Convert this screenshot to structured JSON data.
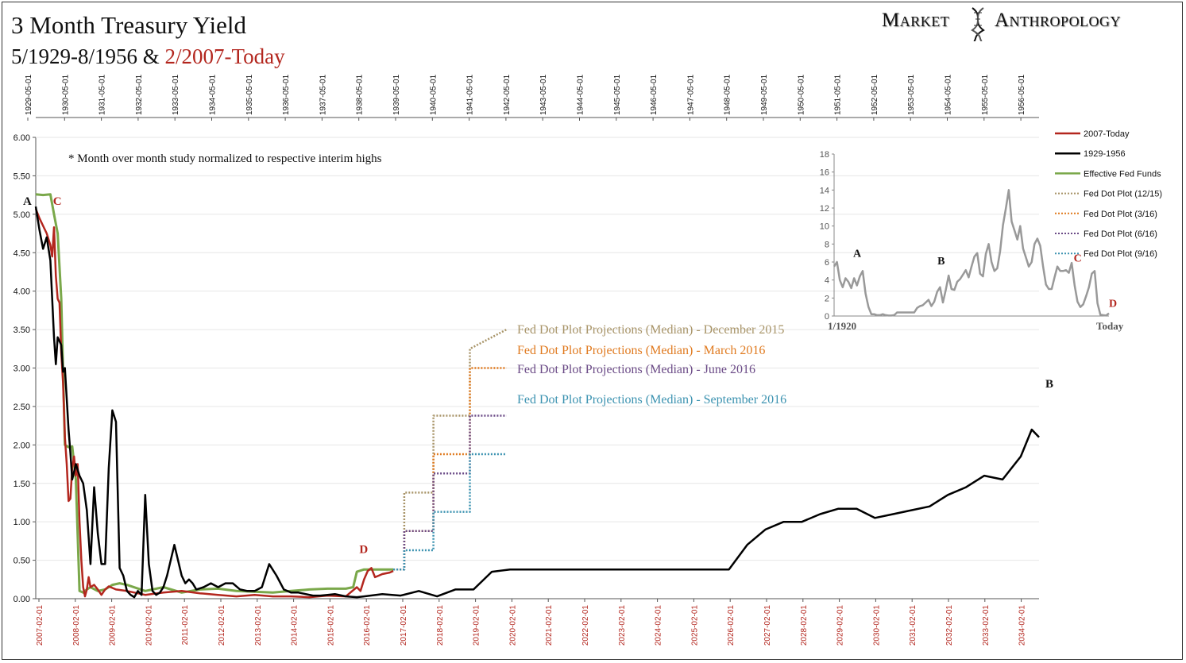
{
  "header": {
    "title": "3 Month Treasury Yield",
    "subtitle_black": "5/1929-8/1956 & ",
    "subtitle_red": "2/2007-Today",
    "brand_left": "Market",
    "brand_right": "Anthropology"
  },
  "colors": {
    "red_series": "#b3261e",
    "black_series": "#000000",
    "fed_funds": "#7aa84a",
    "dot_dec15": "#a89468",
    "dot_mar16": "#e07a1f",
    "dot_jun16": "#6b4b87",
    "dot_sep16": "#3b92b0",
    "inset": "#999999"
  },
  "chart_data": [
    {
      "type": "line",
      "title": "3 Month Treasury Yield",
      "note": "* Month over month study normalized to respective interim highs",
      "ylim": [
        0,
        6
      ],
      "y_ticks": [
        "0.00",
        "0.50",
        "1.00",
        "1.50",
        "2.00",
        "2.50",
        "3.00",
        "3.50",
        "4.00",
        "4.50",
        "5.00",
        "5.50",
        "6.00"
      ],
      "x_bottom_ticks": [
        "2007-02-01",
        "2008-02-01",
        "2009-02-01",
        "2010-02-01",
        "2011-02-01",
        "2012-02-01",
        "2013-02-01",
        "2014-02-01",
        "2015-02-01",
        "2016-02-01",
        "2017-02-01",
        "2018-02-01",
        "2019-02-01",
        "2020-02-01",
        "2021-02-01",
        "2022-02-01",
        "2023-02-01",
        "2024-02-01",
        "2025-02-01",
        "2026-02-01",
        "2027-02-01",
        "2028-02-01",
        "2029-02-01",
        "2030-02-01",
        "2031-02-01",
        "2032-02-01",
        "2033-02-01",
        "2034-02-01"
      ],
      "x_top_ticks": [
        "1929-05-01",
        "1930-05-01",
        "1931-05-01",
        "1932-05-01",
        "1933-05-01",
        "1934-05-01",
        "1935-05-01",
        "1936-05-01",
        "1937-05-01",
        "1938-05-01",
        "1939-05-01",
        "1940-05-01",
        "1941-05-01",
        "1942-05-01",
        "1943-05-01",
        "1944-05-01",
        "1945-05-01",
        "1946-05-01",
        "1947-05-01",
        "1948-05-01",
        "1949-05-01",
        "1950-05-01",
        "1951-05-01",
        "1952-05-01",
        "1953-05-01",
        "1954-05-01",
        "1955-05-01",
        "1956-05-01"
      ],
      "legend": [
        "2007-Today",
        "1929-1956",
        "Effective Fed Funds",
        "Fed Dot Plot (12/15)",
        "Fed Dot Plot (3/16)",
        "Fed Dot Plot (6/16)",
        "Fed Dot Plot (9/16)"
      ],
      "legend_placement": "right",
      "series": [
        {
          "name": "2007-Today",
          "x": [
            0,
            0.1,
            0.2,
            0.3,
            0.4,
            0.45,
            0.5,
            0.55,
            0.6,
            0.65,
            0.7,
            0.75,
            0.8,
            0.85,
            0.9,
            0.95,
            1.0,
            1.05,
            1.1,
            1.15,
            1.2,
            1.25,
            1.3,
            1.35,
            1.4,
            1.45,
            1.5,
            1.6,
            1.7,
            1.8,
            1.9,
            2.0,
            2.2,
            2.5,
            3.0,
            3.5,
            4.0,
            4.5,
            5.0,
            5.5,
            6.0,
            6.5,
            7.0,
            7.5,
            8.0,
            8.5,
            8.8,
            8.9,
            9.0,
            9.1,
            9.2,
            9.3,
            9.4,
            9.5,
            9.7,
            9.8
          ],
          "y": [
            5.07,
            4.95,
            4.85,
            4.75,
            4.6,
            4.45,
            4.83,
            4.2,
            3.9,
            3.85,
            3.2,
            2.8,
            2.1,
            1.75,
            1.27,
            1.3,
            1.7,
            1.85,
            1.6,
            1.75,
            1.0,
            0.5,
            0.15,
            0.03,
            0.12,
            0.28,
            0.15,
            0.18,
            0.12,
            0.05,
            0.12,
            0.16,
            0.12,
            0.1,
            0.05,
            0.08,
            0.1,
            0.07,
            0.05,
            0.03,
            0.05,
            0.03,
            0.03,
            0.02,
            0.04,
            0.03,
            0.15,
            0.1,
            0.25,
            0.36,
            0.4,
            0.28,
            0.3,
            0.32,
            0.34,
            0.36
          ]
        },
        {
          "name": "1929-1956",
          "x": [
            0,
            0.1,
            0.2,
            0.3,
            0.4,
            0.5,
            0.55,
            0.6,
            0.7,
            0.75,
            0.8,
            0.9,
            0.95,
            1.0,
            1.1,
            1.2,
            1.3,
            1.4,
            1.5,
            1.6,
            1.7,
            1.8,
            1.9,
            2.0,
            2.1,
            2.2,
            2.3,
            2.4,
            2.5,
            2.6,
            2.7,
            2.8,
            2.9,
            3.0,
            3.1,
            3.2,
            3.3,
            3.4,
            3.5,
            3.6,
            3.8,
            4.0,
            4.1,
            4.2,
            4.3,
            4.4,
            4.6,
            4.8,
            5.0,
            5.2,
            5.4,
            5.6,
            5.8,
            6.0,
            6.2,
            6.4,
            6.6,
            6.8,
            7.0,
            7.2,
            7.4,
            7.6,
            7.8,
            8.0,
            8.2,
            8.5,
            8.8,
            9.0,
            9.5,
            10.0,
            10.5,
            11.0,
            11.5,
            12.0,
            12.5,
            13.0,
            13.5,
            14.0,
            15.0,
            16.0,
            17.0,
            18.0,
            18.5,
            19.0,
            19.5,
            20.0,
            20.5,
            21.0,
            21.5,
            22.0,
            22.5,
            23.0,
            23.5,
            24.0,
            24.5,
            25.0,
            25.5,
            26.0,
            26.5,
            27.0,
            27.3,
            27.5
          ],
          "y": [
            5.1,
            4.8,
            4.55,
            4.7,
            4.4,
            3.4,
            3.05,
            3.4,
            3.3,
            2.95,
            3.0,
            2.2,
            1.9,
            1.55,
            1.75,
            1.6,
            1.5,
            1.15,
            0.45,
            1.45,
            0.85,
            0.45,
            0.45,
            1.7,
            2.45,
            2.3,
            0.4,
            0.3,
            0.1,
            0.05,
            0.02,
            0.1,
            0.05,
            1.35,
            0.45,
            0.1,
            0.05,
            0.08,
            0.15,
            0.3,
            0.7,
            0.3,
            0.2,
            0.25,
            0.2,
            0.12,
            0.15,
            0.2,
            0.15,
            0.2,
            0.2,
            0.12,
            0.1,
            0.1,
            0.15,
            0.45,
            0.3,
            0.12,
            0.08,
            0.08,
            0.06,
            0.04,
            0.04,
            0.05,
            0.06,
            0.03,
            0.02,
            0.03,
            0.06,
            0.04,
            0.1,
            0.03,
            0.12,
            0.12,
            0.35,
            0.38,
            0.38,
            0.38,
            0.38,
            0.38,
            0.38,
            0.38,
            0.38,
            0.38,
            0.7,
            0.9,
            1.0,
            1.0,
            1.1,
            1.17,
            1.17,
            1.05,
            1.1,
            1.15,
            1.2,
            1.35,
            1.45,
            1.6,
            1.55,
            1.85,
            2.2,
            2.1
          ]
        },
        {
          "name": "Effective Fed Funds",
          "x": [
            0,
            0.2,
            0.4,
            0.5,
            0.6,
            0.7,
            0.8,
            0.9,
            1.0,
            1.1,
            1.2,
            1.3,
            1.4,
            1.5,
            1.7,
            1.9,
            2.1,
            2.3,
            2.5,
            3.0,
            3.5,
            4.0,
            4.5,
            5.0,
            5.5,
            6.0,
            6.5,
            7.0,
            7.5,
            8.0,
            8.5,
            8.7,
            8.8,
            9.0,
            9.2,
            9.4,
            9.6,
            9.8
          ],
          "y": [
            5.26,
            5.25,
            5.26,
            5.0,
            4.75,
            3.9,
            2.0,
            1.97,
            1.98,
            1.55,
            0.1,
            0.08,
            0.12,
            0.15,
            0.1,
            0.12,
            0.18,
            0.2,
            0.18,
            0.1,
            0.15,
            0.08,
            0.12,
            0.13,
            0.1,
            0.09,
            0.08,
            0.1,
            0.12,
            0.13,
            0.13,
            0.15,
            0.35,
            0.38,
            0.38,
            0.38,
            0.38,
            0.38
          ]
        },
        {
          "name": "Fed Dot Plot (12/15)",
          "x": [
            9.8,
            10.1,
            10.1,
            10.9,
            10.9,
            11.9,
            11.9,
            12.9
          ],
          "y": [
            0.38,
            0.38,
            1.38,
            1.38,
            2.38,
            2.38,
            3.25,
            3.5
          ]
        },
        {
          "name": "Fed Dot Plot (3/16)",
          "x": [
            9.8,
            10.1,
            10.1,
            10.9,
            10.9,
            11.9,
            11.9,
            12.9
          ],
          "y": [
            0.38,
            0.38,
            0.88,
            0.88,
            1.88,
            1.88,
            3.0,
            3.0
          ]
        },
        {
          "name": "Fed Dot Plot (6/16)",
          "x": [
            9.8,
            10.1,
            10.1,
            10.9,
            10.9,
            11.9,
            11.9,
            12.9
          ],
          "y": [
            0.38,
            0.38,
            0.88,
            0.88,
            1.63,
            1.63,
            2.38,
            2.38
          ]
        },
        {
          "name": "Fed Dot Plot (9/16)",
          "x": [
            9.8,
            10.1,
            10.1,
            10.9,
            10.9,
            11.9,
            11.9,
            12.9
          ],
          "y": [
            0.38,
            0.38,
            0.63,
            0.63,
            1.13,
            1.13,
            1.88,
            1.88
          ]
        }
      ],
      "annotations": [
        {
          "text": "Fed Dot Plot Projections (Median) - December 2015",
          "series": "Fed Dot Plot (12/15)"
        },
        {
          "text": "Fed Dot Plot Projections (Median) - March 2016",
          "series": "Fed Dot Plot (3/16)"
        },
        {
          "text": "Fed Dot Plot Projections (Median) - June 2016",
          "series": "Fed Dot Plot (6/16)"
        },
        {
          "text": "Fed Dot Plot Projections (Median) - September 2016",
          "series": "Fed Dot Plot (9/16)"
        }
      ],
      "point_labels": [
        {
          "text": "A",
          "series": "1929-1956",
          "x": 0,
          "y": 5.1
        },
        {
          "text": "C",
          "series": "2007-Today",
          "x": 0.3,
          "y": 5.1
        },
        {
          "text": "D",
          "series": "2007-Today",
          "x": 9.0,
          "y": 0.45
        },
        {
          "text": "B",
          "series": "1929-1956",
          "x": 27.5,
          "y": 2.6
        }
      ]
    },
    {
      "type": "line",
      "title": "",
      "ylim": [
        0,
        18
      ],
      "y_ticks": [
        "0",
        "2",
        "4",
        "6",
        "8",
        "10",
        "12",
        "14",
        "16",
        "18"
      ],
      "x_labels": [
        "1/1920",
        "Today"
      ],
      "series": [
        {
          "name": "",
          "x": [
            0,
            1,
            2,
            3,
            4,
            5,
            6,
            7,
            8,
            9,
            10,
            11,
            12,
            13,
            14,
            15,
            16,
            17,
            18,
            19,
            20,
            21,
            22,
            23,
            24,
            25,
            26,
            27,
            28,
            29,
            30,
            31,
            32,
            33,
            34,
            35,
            36,
            37,
            38,
            39,
            40,
            41,
            42,
            43,
            44,
            45,
            46,
            47,
            48,
            49,
            50,
            51,
            52,
            53,
            54,
            55,
            56,
            57,
            58,
            59,
            60,
            61,
            62,
            63,
            64,
            65,
            66,
            67,
            68,
            69,
            70,
            71,
            72,
            73,
            74,
            75,
            76,
            77,
            78,
            79,
            80,
            81,
            82,
            83,
            84,
            85,
            86,
            87,
            88,
            89,
            90,
            91,
            92,
            93,
            94,
            95,
            96
          ],
          "y": [
            5.5,
            6.0,
            4.0,
            3.2,
            4.2,
            3.8,
            3.1,
            4.2,
            3.4,
            4.4,
            5.0,
            2.5,
            1.0,
            0.2,
            0.2,
            0.1,
            0.1,
            0.2,
            0.1,
            0.05,
            0.05,
            0.1,
            0.4,
            0.4,
            0.4,
            0.4,
            0.4,
            0.4,
            0.4,
            0.9,
            1.1,
            1.2,
            1.5,
            1.8,
            1.1,
            1.6,
            2.7,
            3.2,
            1.5,
            2.9,
            4.5,
            3.0,
            2.9,
            3.8,
            4.1,
            4.6,
            5.1,
            4.3,
            5.5,
            6.6,
            7.0,
            4.7,
            4.4,
            6.9,
            8.0,
            6.0,
            5.0,
            5.3,
            7.2,
            10.1,
            12.0,
            14.0,
            10.5,
            9.5,
            8.5,
            10.0,
            7.5,
            6.5,
            5.5,
            6.0,
            8.0,
            8.6,
            7.8,
            5.5,
            3.5,
            3.0,
            3.0,
            4.3,
            5.5,
            5.0,
            5.0,
            5.1,
            4.8,
            5.9,
            3.4,
            1.6,
            1.0,
            1.3,
            2.2,
            3.2,
            4.7,
            5.0,
            1.4,
            0.15,
            0.1,
            0.05,
            0.3
          ]
        }
      ],
      "point_labels": [
        {
          "text": "A",
          "x": 10,
          "y": 5.0
        },
        {
          "text": "B",
          "x": 40,
          "y": 4.5
        },
        {
          "text": "C",
          "x": 87,
          "y": 5.0
        },
        {
          "text": "D",
          "x": 96,
          "y": 0.3
        }
      ]
    }
  ]
}
